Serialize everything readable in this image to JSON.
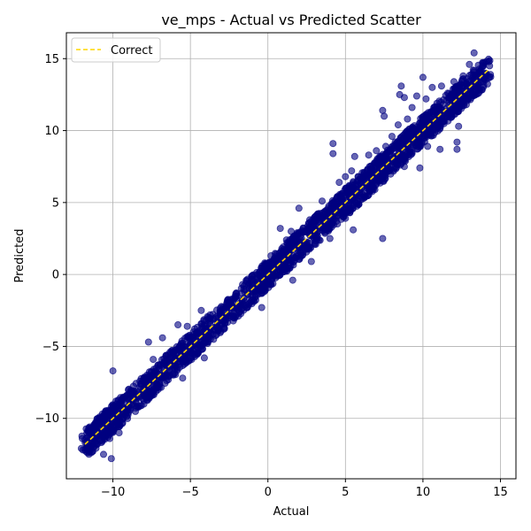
{
  "chart_data": {
    "type": "scatter",
    "title": "ve_mps - Actual vs Predicted Scatter",
    "xlabel": "Actual",
    "ylabel": "Predicted",
    "xlim": [
      -13,
      16
    ],
    "ylim": [
      -14.2,
      16.8
    ],
    "xticks": [
      -10,
      -5,
      0,
      5,
      10,
      15
    ],
    "yticks": [
      -10,
      -5,
      0,
      5,
      10,
      15
    ],
    "xtick_labels": [
      "−10",
      "−5",
      "0",
      "5",
      "10",
      "15"
    ],
    "ytick_labels": [
      "−10",
      "−5",
      "0",
      "5",
      "10",
      "15"
    ],
    "grid": true,
    "legend": {
      "placement": "top-left",
      "entries": [
        "Correct"
      ]
    },
    "point_color": "#000080",
    "line_color": "#FFD700",
    "series": [
      {
        "kind": "points",
        "points": [
          [
            -11.8,
            -11.5
          ],
          [
            -11.6,
            -12.0
          ],
          [
            -11.5,
            -11.0
          ],
          [
            -11.3,
            -12.3
          ],
          [
            -11.2,
            -10.6
          ],
          [
            -11.0,
            -11.8
          ],
          [
            -10.9,
            -11.2
          ],
          [
            -10.8,
            -10.2
          ],
          [
            -10.6,
            -12.5
          ],
          [
            -10.5,
            -10.9
          ],
          [
            -10.4,
            -9.8
          ],
          [
            -10.2,
            -11.4
          ],
          [
            -10.1,
            -12.8
          ],
          [
            -10.0,
            -10.0
          ],
          [
            -10.0,
            -6.7
          ],
          [
            -9.9,
            -9.4
          ],
          [
            -9.8,
            -8.8
          ],
          [
            -9.6,
            -11.0
          ],
          [
            -9.4,
            -9.2
          ],
          [
            -9.2,
            -8.5
          ],
          [
            -9.0,
            -9.6
          ],
          [
            -8.8,
            -8.1
          ],
          [
            -8.5,
            -8.9
          ],
          [
            -8.2,
            -7.6
          ],
          [
            -8.0,
            -9.0
          ],
          [
            -7.8,
            -7.0
          ],
          [
            -7.7,
            -4.7
          ],
          [
            -7.5,
            -8.3
          ],
          [
            -7.4,
            -5.9
          ],
          [
            -7.2,
            -6.5
          ],
          [
            -7.0,
            -7.4
          ],
          [
            -6.8,
            -4.4
          ],
          [
            -6.6,
            -6.2
          ],
          [
            -6.4,
            -7.1
          ],
          [
            -6.2,
            -5.3
          ],
          [
            -6.0,
            -6.4
          ],
          [
            -5.8,
            -3.5
          ],
          [
            -5.6,
            -4.8
          ],
          [
            -5.5,
            -7.2
          ],
          [
            -5.3,
            -5.9
          ],
          [
            -5.2,
            -3.6
          ],
          [
            -5.0,
            -5.1
          ],
          [
            -4.8,
            -4.0
          ],
          [
            -4.5,
            -4.9
          ],
          [
            -4.3,
            -2.5
          ],
          [
            -4.1,
            -5.8
          ],
          [
            -4.0,
            -3.6
          ],
          [
            -3.8,
            -4.3
          ],
          [
            -3.5,
            -3.1
          ],
          [
            -3.2,
            -3.9
          ],
          [
            -3.0,
            -2.7
          ],
          [
            -2.8,
            -3.4
          ],
          [
            -2.5,
            -2.2
          ],
          [
            -2.2,
            -2.9
          ],
          [
            -2.0,
            -1.5
          ],
          [
            -1.8,
            -2.6
          ],
          [
            -1.5,
            -1.2
          ],
          [
            -1.2,
            -2.0
          ],
          [
            -1.0,
            -0.6
          ],
          [
            -0.8,
            -1.4
          ],
          [
            -0.5,
            -0.2
          ],
          [
            -0.3,
            -0.9
          ],
          [
            -0.1,
            0.2
          ],
          [
            -0.4,
            -2.3
          ],
          [
            -0.2,
            0.8
          ],
          [
            0.0,
            -0.3
          ],
          [
            0.2,
            1.3
          ],
          [
            0.3,
            0.1
          ],
          [
            0.5,
            1.0
          ],
          [
            0.7,
            0.2
          ],
          [
            0.8,
            3.2
          ],
          [
            0.9,
            1.8
          ],
          [
            1.0,
            0.6
          ],
          [
            1.2,
            2.4
          ],
          [
            1.4,
            1.1
          ],
          [
            1.5,
            3.0
          ],
          [
            1.6,
            -0.4
          ],
          [
            1.8,
            2.0
          ],
          [
            2.0,
            4.6
          ],
          [
            2.1,
            1.5
          ],
          [
            2.3,
            3.2
          ],
          [
            2.5,
            1.9
          ],
          [
            2.7,
            3.8
          ],
          [
            2.8,
            0.9
          ],
          [
            3.0,
            3.1
          ],
          [
            3.2,
            4.2
          ],
          [
            3.3,
            2.4
          ],
          [
            3.5,
            5.1
          ],
          [
            3.7,
            3.3
          ],
          [
            3.9,
            4.6
          ],
          [
            4.0,
            2.5
          ],
          [
            4.2,
            9.1
          ],
          [
            4.2,
            8.4
          ],
          [
            4.4,
            4.8
          ],
          [
            4.6,
            6.4
          ],
          [
            4.8,
            5.1
          ],
          [
            5.0,
            6.8
          ],
          [
            5.0,
            3.9
          ],
          [
            5.2,
            5.8
          ],
          [
            5.4,
            7.2
          ],
          [
            5.5,
            3.1
          ],
          [
            5.6,
            8.2
          ],
          [
            5.8,
            6.5
          ],
          [
            6.0,
            5.2
          ],
          [
            6.2,
            7.1
          ],
          [
            6.4,
            6.0
          ],
          [
            6.5,
            8.3
          ],
          [
            6.7,
            6.8
          ],
          [
            6.9,
            5.9
          ],
          [
            7.0,
            8.6
          ],
          [
            7.2,
            7.4
          ],
          [
            7.4,
            11.4
          ],
          [
            7.5,
            11.0
          ],
          [
            7.4,
            2.5
          ],
          [
            7.6,
            8.9
          ],
          [
            7.8,
            7.2
          ],
          [
            8.0,
            9.6
          ],
          [
            8.2,
            8.1
          ],
          [
            8.4,
            10.4
          ],
          [
            8.5,
            12.5
          ],
          [
            8.6,
            13.1
          ],
          [
            8.8,
            12.3
          ],
          [
            8.8,
            7.5
          ],
          [
            9.0,
            10.8
          ],
          [
            9.1,
            9.2
          ],
          [
            9.3,
            11.6
          ],
          [
            9.5,
            10.0
          ],
          [
            9.6,
            12.4
          ],
          [
            9.8,
            7.4
          ],
          [
            10.0,
            13.7
          ],
          [
            10.0,
            10.5
          ],
          [
            10.2,
            12.2
          ],
          [
            10.3,
            8.9
          ],
          [
            10.5,
            11.3
          ],
          [
            10.6,
            13.0
          ],
          [
            10.8,
            10.4
          ],
          [
            10.9,
            11.9
          ],
          [
            11.1,
            8.7
          ],
          [
            11.2,
            13.1
          ],
          [
            11.4,
            11.2
          ],
          [
            11.6,
            12.6
          ],
          [
            11.8,
            10.9
          ],
          [
            12.0,
            13.4
          ],
          [
            12.2,
            9.2
          ],
          [
            12.2,
            8.7
          ],
          [
            12.3,
            10.3
          ],
          [
            12.4,
            12.0
          ],
          [
            12.6,
            13.8
          ],
          [
            12.8,
            11.8
          ],
          [
            13.0,
            14.6
          ],
          [
            13.1,
            12.9
          ],
          [
            13.3,
            15.4
          ],
          [
            13.5,
            13.6
          ],
          [
            13.7,
            14.2
          ],
          [
            13.9,
            13.4
          ],
          [
            14.1,
            14.8
          ],
          [
            14.3,
            14.5
          ]
        ]
      },
      {
        "kind": "line",
        "name": "Correct",
        "x": [
          -11.8,
          14.3
        ],
        "y": [
          -11.8,
          14.3
        ]
      }
    ]
  }
}
